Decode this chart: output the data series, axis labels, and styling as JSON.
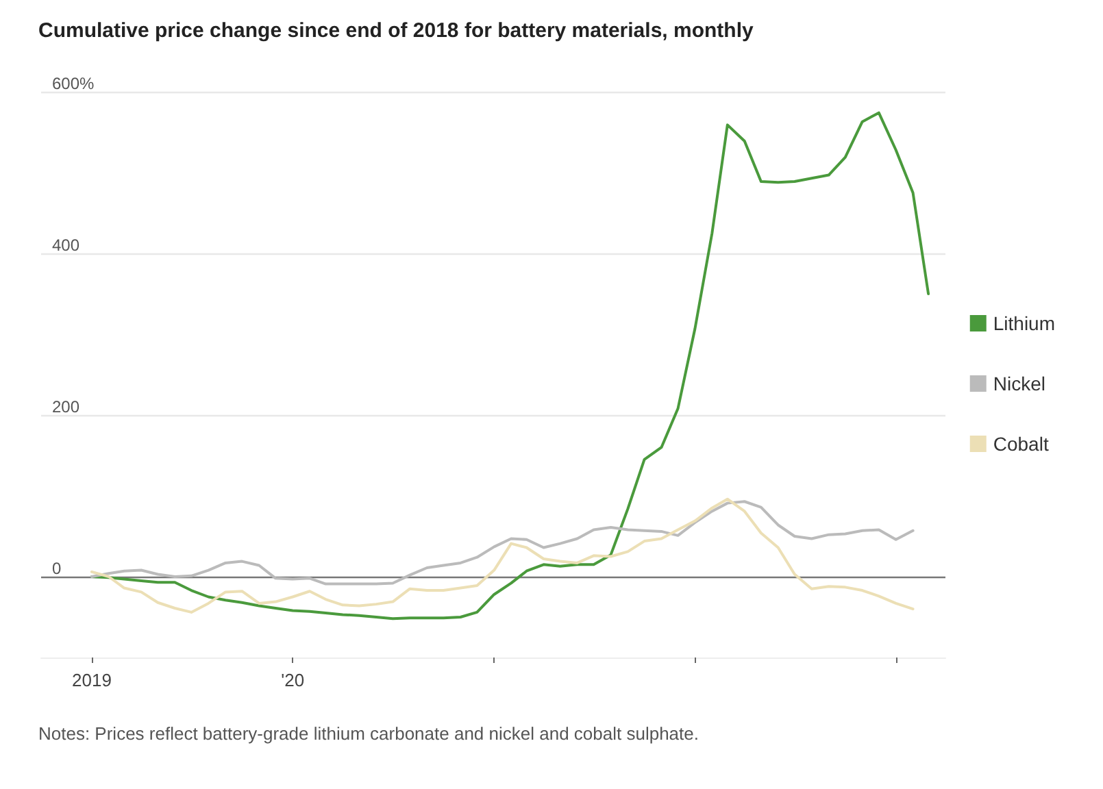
{
  "chart_data": {
    "type": "line",
    "title": "Cumulative price change since end of 2018 for battery materials, monthly",
    "annotations": [
      "Notes: Prices reflect battery-grade lithium carbonate and nickel and cobalt sulphate."
    ],
    "x": [
      "2019-01",
      "2019-02",
      "2019-03",
      "2019-04",
      "2019-05",
      "2019-06",
      "2019-07",
      "2019-08",
      "2019-09",
      "2019-10",
      "2019-11",
      "2019-12",
      "2020-01",
      "2020-02",
      "2020-03",
      "2020-04",
      "2020-05",
      "2020-06",
      "2020-07",
      "2020-08",
      "2020-09",
      "2020-10",
      "2020-11",
      "2020-12",
      "2021-01",
      "2021-02",
      "2021-03",
      "2021-04",
      "2021-05",
      "2021-06",
      "2021-07",
      "2021-08",
      "2021-09",
      "2021-10",
      "2021-11",
      "2021-12",
      "2022-01",
      "2022-02",
      "2022-03",
      "2022-04",
      "2022-05",
      "2022-06",
      "2022-07",
      "2022-08",
      "2022-09",
      "2022-10",
      "2022-11",
      "2022-12",
      "2023-01",
      "2023-02",
      "2023-03"
    ],
    "series": [
      {
        "name": "Lithium",
        "color": "#4a9a3c",
        "values": [
          0,
          -1,
          -3,
          -5,
          -7,
          -7,
          -17,
          -25,
          -29,
          -32,
          -36,
          -39,
          -42,
          -43,
          -45,
          -47,
          -48,
          -50,
          -52,
          -51,
          -51,
          -51,
          -50,
          -44,
          -22,
          -8,
          7,
          15,
          13,
          15,
          15,
          27,
          84,
          145,
          160,
          208,
          307,
          425,
          559,
          539,
          489,
          488,
          489,
          493,
          497,
          519,
          563,
          574,
          528,
          475,
          350
        ]
      },
      {
        "name": "Nickel",
        "color": "#bbbbbb",
        "values": [
          0,
          4,
          7,
          8,
          3,
          0,
          1,
          8,
          17,
          19,
          14,
          -2,
          -3,
          -2,
          -9,
          -9,
          -9,
          -9,
          -8,
          2,
          11,
          14,
          17,
          24,
          37,
          47,
          46,
          36,
          41,
          47,
          58,
          61,
          58,
          57,
          56,
          51,
          67,
          81,
          91,
          93,
          86,
          64,
          50,
          47,
          52,
          53,
          57,
          58,
          46,
          57,
          null
        ]
      },
      {
        "name": "Cobalt",
        "color": "#ecdfb5",
        "values": [
          6,
          0,
          -14,
          -19,
          -32,
          -39,
          -44,
          -33,
          -19,
          -18,
          -33,
          -31,
          -25,
          -18,
          -28,
          -35,
          -36,
          -34,
          -31,
          -15,
          -17,
          -17,
          -14,
          -11,
          8,
          41,
          36,
          22,
          19,
          17,
          26,
          25,
          31,
          44,
          47,
          58,
          69,
          85,
          96,
          81,
          54,
          36,
          3,
          -15,
          -12,
          -13,
          -17,
          -24,
          -33,
          -40,
          null
        ]
      }
    ],
    "xlim": [
      "2018-10",
      "2023-04"
    ],
    "xticks": [
      {
        "value": "2019-01",
        "label": "2019"
      },
      {
        "value": "2020-01",
        "label": "'20"
      },
      {
        "value": "2021-01",
        "label": null
      },
      {
        "value": "2022-01",
        "label": null
      },
      {
        "value": "2023-01",
        "label": null
      }
    ],
    "ylim": [
      -100,
      600
    ],
    "yticks": [
      0,
      200,
      400,
      {
        "value": 600,
        "label": "600%"
      }
    ],
    "grid": "y",
    "legend": "right",
    "marker": "none",
    "line_style": "solid"
  }
}
